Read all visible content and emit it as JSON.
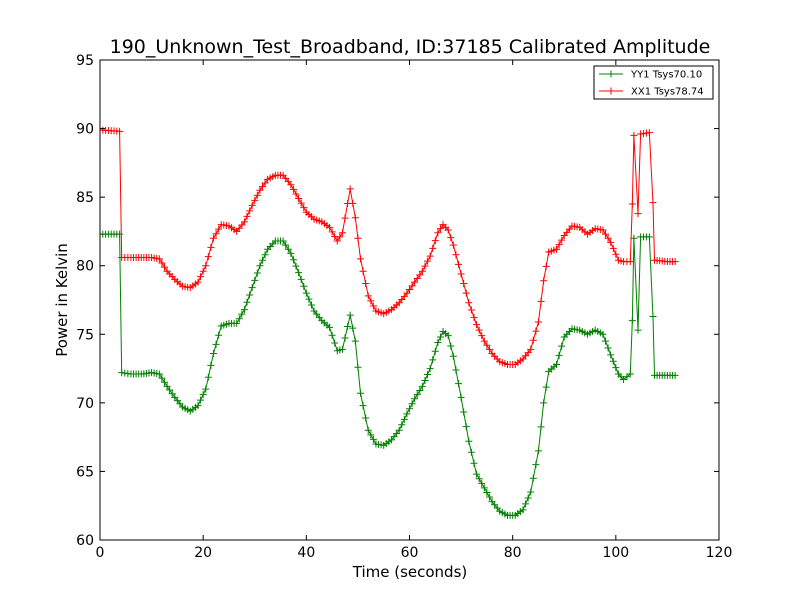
{
  "chart_data": {
    "type": "line",
    "title": "190_Unknown_Test_Broadband, ID:37185 Calibrated Amplitude",
    "xlabel": "Time (seconds)",
    "ylabel": "Power in Kelvin",
    "xlim": [
      0,
      120
    ],
    "ylim": [
      60,
      95
    ],
    "xticks": [
      0,
      20,
      40,
      60,
      80,
      100,
      120
    ],
    "yticks": [
      60,
      65,
      70,
      75,
      80,
      85,
      90,
      95
    ],
    "grid": false,
    "legend_position": "top-right",
    "marker": "+",
    "series": [
      {
        "name": "YY1 Tsys70.10",
        "color": "#008000",
        "points": [
          [
            0,
            82.3
          ],
          [
            3.8,
            82.3
          ],
          [
            4.2,
            72.2
          ],
          [
            6,
            72.1
          ],
          [
            8,
            72.1
          ],
          [
            10,
            72.2
          ],
          [
            11.5,
            72.1
          ],
          [
            13,
            71.2
          ],
          [
            14.5,
            70.4
          ],
          [
            16,
            69.7
          ],
          [
            17.5,
            69.4
          ],
          [
            19,
            69.8
          ],
          [
            20.5,
            71.0
          ],
          [
            22,
            73.6
          ],
          [
            23.5,
            75.6
          ],
          [
            25,
            75.8
          ],
          [
            26.5,
            75.8
          ],
          [
            28,
            76.8
          ],
          [
            29.5,
            78.4
          ],
          [
            31,
            80.0
          ],
          [
            32.5,
            81.2
          ],
          [
            34,
            81.8
          ],
          [
            35.5,
            81.8
          ],
          [
            37,
            80.9
          ],
          [
            38.5,
            79.5
          ],
          [
            40,
            78.0
          ],
          [
            41.5,
            76.7
          ],
          [
            43,
            76.0
          ],
          [
            44.5,
            75.5
          ],
          [
            46,
            73.8
          ],
          [
            47,
            73.9
          ],
          [
            48.5,
            76.4
          ],
          [
            49.5,
            74.5
          ],
          [
            50.5,
            70.7
          ],
          [
            52,
            68.0
          ],
          [
            53.5,
            67.0
          ],
          [
            55,
            66.9
          ],
          [
            56.5,
            67.3
          ],
          [
            58,
            68.0
          ],
          [
            59.5,
            69.2
          ],
          [
            61,
            70.3
          ],
          [
            62.5,
            71.2
          ],
          [
            64,
            72.5
          ],
          [
            65.5,
            74.4
          ],
          [
            66.5,
            75.2
          ],
          [
            67.5,
            74.9
          ],
          [
            68.5,
            73.4
          ],
          [
            70,
            70.4
          ],
          [
            71.5,
            67.2
          ],
          [
            73,
            64.8
          ],
          [
            74.5,
            63.8
          ],
          [
            76,
            62.8
          ],
          [
            77.5,
            62.1
          ],
          [
            79,
            61.8
          ],
          [
            80.5,
            61.8
          ],
          [
            82,
            62.2
          ],
          [
            83.5,
            63.5
          ],
          [
            85,
            66.5
          ],
          [
            86,
            70.0
          ],
          [
            87,
            72.3
          ],
          [
            88.5,
            72.8
          ],
          [
            90,
            74.8
          ],
          [
            91.5,
            75.4
          ],
          [
            93,
            75.3
          ],
          [
            94.5,
            75.0
          ],
          [
            96,
            75.3
          ],
          [
            97.5,
            75.0
          ],
          [
            99,
            73.5
          ],
          [
            100.5,
            72.1
          ],
          [
            101.5,
            71.7
          ],
          [
            102.8,
            72.1
          ],
          [
            103.2,
            76.0
          ],
          [
            103.5,
            82.0
          ],
          [
            104.3,
            75.3
          ],
          [
            104.8,
            82.1
          ],
          [
            106.5,
            82.1
          ],
          [
            107.2,
            76.3
          ],
          [
            107.5,
            72.0
          ],
          [
            110,
            72.0
          ],
          [
            111.5,
            72.0
          ]
        ]
      },
      {
        "name": "XX1 Tsys78.74",
        "color": "#ff0000",
        "points": [
          [
            0,
            89.9
          ],
          [
            3.8,
            89.8
          ],
          [
            4.2,
            80.6
          ],
          [
            6,
            80.6
          ],
          [
            8,
            80.6
          ],
          [
            10,
            80.6
          ],
          [
            11.5,
            80.5
          ],
          [
            13,
            79.6
          ],
          [
            14.5,
            79.0
          ],
          [
            16,
            78.5
          ],
          [
            17.5,
            78.4
          ],
          [
            19,
            78.8
          ],
          [
            20.5,
            80.0
          ],
          [
            22,
            82.0
          ],
          [
            23.5,
            83.0
          ],
          [
            25,
            82.9
          ],
          [
            26.5,
            82.5
          ],
          [
            28,
            83.2
          ],
          [
            29.5,
            84.4
          ],
          [
            31,
            85.5
          ],
          [
            32.5,
            86.3
          ],
          [
            34,
            86.6
          ],
          [
            35.5,
            86.6
          ],
          [
            37,
            85.9
          ],
          [
            38.5,
            84.9
          ],
          [
            40,
            83.9
          ],
          [
            41.5,
            83.4
          ],
          [
            43,
            83.2
          ],
          [
            44.5,
            82.8
          ],
          [
            46,
            81.8
          ],
          [
            47,
            82.4
          ],
          [
            48.5,
            85.6
          ],
          [
            49.5,
            83.5
          ],
          [
            50.5,
            80.5
          ],
          [
            52,
            77.8
          ],
          [
            53.5,
            76.7
          ],
          [
            55,
            76.5
          ],
          [
            56.5,
            76.8
          ],
          [
            58,
            77.3
          ],
          [
            59.5,
            78.0
          ],
          [
            61,
            78.8
          ],
          [
            62.5,
            79.6
          ],
          [
            64,
            80.7
          ],
          [
            65.5,
            82.4
          ],
          [
            66.5,
            83.0
          ],
          [
            67.5,
            82.6
          ],
          [
            68.5,
            81.5
          ],
          [
            70,
            79.4
          ],
          [
            71.5,
            77.3
          ],
          [
            73,
            75.7
          ],
          [
            74.5,
            74.5
          ],
          [
            76,
            73.6
          ],
          [
            77.5,
            73.0
          ],
          [
            79,
            72.8
          ],
          [
            80.5,
            72.8
          ],
          [
            82,
            73.2
          ],
          [
            83.5,
            73.9
          ],
          [
            85,
            75.9
          ],
          [
            86,
            78.9
          ],
          [
            87,
            81.0
          ],
          [
            88.5,
            81.2
          ],
          [
            90,
            82.2
          ],
          [
            91.5,
            82.9
          ],
          [
            93,
            82.8
          ],
          [
            94.5,
            82.3
          ],
          [
            96,
            82.7
          ],
          [
            97.5,
            82.6
          ],
          [
            99,
            81.7
          ],
          [
            100.5,
            80.4
          ],
          [
            101.5,
            80.3
          ],
          [
            102.8,
            80.3
          ],
          [
            103.2,
            84.5
          ],
          [
            103.5,
            89.5
          ],
          [
            104.3,
            83.8
          ],
          [
            104.8,
            89.6
          ],
          [
            106.5,
            89.7
          ],
          [
            107.2,
            84.6
          ],
          [
            107.5,
            80.4
          ],
          [
            110,
            80.3
          ],
          [
            111.5,
            80.3
          ]
        ]
      }
    ]
  }
}
